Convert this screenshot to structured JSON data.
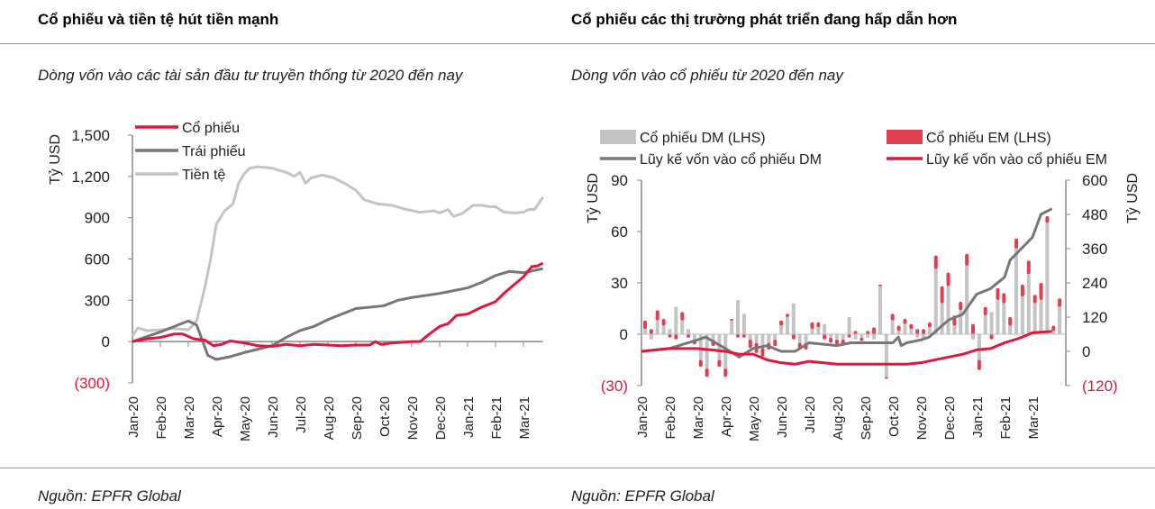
{
  "left": {
    "title": "Cổ phiếu và tiền tệ hút tiền mạnh",
    "subtitle": "Dòng vốn vào các tài sản đầu tư truyền thống từ 2020 đến nay",
    "source": "Nguồn: EPFR Global"
  },
  "right": {
    "title": "Cổ phiếu các thị trường phát triển đang hấp dẫn hơn",
    "subtitle": "Dòng vốn vào cổ phiếu từ 2020 đến nay",
    "source": "Nguồn: EPFR Global"
  },
  "chart_data": [
    {
      "type": "line",
      "ylabel": "Tỷ USD",
      "ylim": [
        -300,
        1500
      ],
      "yticks": [
        1500,
        1200,
        900,
        600,
        300,
        0,
        -300
      ],
      "ytick_labels": [
        "1,500",
        "1,200",
        "900",
        "600",
        "300",
        "0",
        "(300)"
      ],
      "categories": [
        "Jan-20",
        "Feb-20",
        "Mar-20",
        "Apr-20",
        "May-20",
        "Jun-20",
        "Jul-20",
        "Aug-20",
        "Sep-20",
        "Oct-20",
        "Nov-20",
        "Dec-20",
        "Jan-21",
        "Feb-21",
        "Mar-21"
      ],
      "legend": "top-left",
      "series": [
        {
          "name": "Cổ phiếu",
          "color": "#e0183c",
          "points": [
            [
              0,
              0
            ],
            [
              0.5,
              20
            ],
            [
              1,
              30
            ],
            [
              1.5,
              55
            ],
            [
              1.8,
              55
            ],
            [
              2.2,
              20
            ],
            [
              2.6,
              10
            ],
            [
              2.9,
              -30
            ],
            [
              3.2,
              -20
            ],
            [
              3.5,
              5
            ],
            [
              4,
              -10
            ],
            [
              4.5,
              -30
            ],
            [
              5,
              -35
            ],
            [
              5.5,
              -20
            ],
            [
              6,
              -30
            ],
            [
              6.5,
              -20
            ],
            [
              7,
              -25
            ],
            [
              7.5,
              -30
            ],
            [
              8,
              -25
            ],
            [
              8.5,
              -25
            ],
            [
              8.7,
              0
            ],
            [
              8.9,
              -20
            ],
            [
              9.3,
              -10
            ],
            [
              10,
              0
            ],
            [
              10.3,
              0
            ],
            [
              10.6,
              50
            ],
            [
              11,
              110
            ],
            [
              11.3,
              130
            ],
            [
              11.6,
              190
            ],
            [
              12,
              200
            ],
            [
              12.5,
              250
            ],
            [
              13,
              290
            ],
            [
              13.3,
              350
            ],
            [
              13.7,
              420
            ],
            [
              14,
              470
            ],
            [
              14.3,
              545
            ],
            [
              14.5,
              550
            ],
            [
              14.7,
              570
            ]
          ]
        },
        {
          "name": "Trái phiếu",
          "color": "#777777",
          "points": [
            [
              0,
              0
            ],
            [
              1,
              70
            ],
            [
              2,
              150
            ],
            [
              2.3,
              120
            ],
            [
              2.7,
              -100
            ],
            [
              3,
              -130
            ],
            [
              3.5,
              -110
            ],
            [
              4,
              -80
            ],
            [
              5,
              -30
            ],
            [
              5.5,
              30
            ],
            [
              6,
              80
            ],
            [
              6.5,
              110
            ],
            [
              7,
              160
            ],
            [
              7.5,
              200
            ],
            [
              8,
              240
            ],
            [
              8.5,
              250
            ],
            [
              9,
              260
            ],
            [
              9.5,
              300
            ],
            [
              10,
              320
            ],
            [
              11,
              350
            ],
            [
              11.5,
              370
            ],
            [
              12,
              390
            ],
            [
              12.5,
              430
            ],
            [
              13,
              480
            ],
            [
              13.5,
              510
            ],
            [
              14,
              500
            ],
            [
              14.7,
              530
            ]
          ]
        },
        {
          "name": "Tiền tệ",
          "color": "#c4c4c4",
          "points": [
            [
              0,
              40
            ],
            [
              0.2,
              100
            ],
            [
              0.5,
              80
            ],
            [
              1,
              85
            ],
            [
              1.5,
              95
            ],
            [
              2,
              85
            ],
            [
              2.3,
              150
            ],
            [
              2.6,
              400
            ],
            [
              2.8,
              600
            ],
            [
              3,
              850
            ],
            [
              3.3,
              950
            ],
            [
              3.6,
              1000
            ],
            [
              3.8,
              1150
            ],
            [
              4,
              1220
            ],
            [
              4.2,
              1260
            ],
            [
              4.5,
              1270
            ],
            [
              5,
              1260
            ],
            [
              5.5,
              1230
            ],
            [
              5.8,
              1200
            ],
            [
              6,
              1230
            ],
            [
              6.2,
              1150
            ],
            [
              6.4,
              1190
            ],
            [
              6.8,
              1210
            ],
            [
              7.2,
              1190
            ],
            [
              7.6,
              1150
            ],
            [
              8,
              1100
            ],
            [
              8.3,
              1030
            ],
            [
              8.8,
              1000
            ],
            [
              9.3,
              990
            ],
            [
              9.8,
              960
            ],
            [
              10.3,
              940
            ],
            [
              10.8,
              950
            ],
            [
              11,
              935
            ],
            [
              11.3,
              960
            ],
            [
              11.5,
              910
            ],
            [
              11.8,
              930
            ],
            [
              12.2,
              990
            ],
            [
              12.5,
              990
            ],
            [
              12.8,
              980
            ],
            [
              13,
              980
            ],
            [
              13.3,
              940
            ],
            [
              13.7,
              935
            ],
            [
              14,
              940
            ],
            [
              14.2,
              960
            ],
            [
              14.4,
              960
            ],
            [
              14.7,
              1050
            ]
          ]
        }
      ]
    },
    {
      "type": "bar+line",
      "ylabel": "Tỷ USD",
      "y2label": "Tỷ USD",
      "ylim": [
        -30,
        90
      ],
      "y2lim": [
        -120,
        600
      ],
      "yticks": [
        90,
        60,
        30,
        0,
        -30
      ],
      "ytick_labels": [
        "90",
        "60",
        "30",
        "0",
        "(30)"
      ],
      "y2ticks": [
        600,
        480,
        360,
        240,
        120,
        0,
        -120
      ],
      "y2tick_labels": [
        "600",
        "480",
        "360",
        "240",
        "120",
        "0",
        "(120)"
      ],
      "categories": [
        "Jan-20",
        "Feb-20",
        "Mar-20",
        "Apr-20",
        "May-20",
        "Jun-20",
        "Jul-20",
        "Aug-20",
        "Sep-20",
        "Oct-20",
        "Nov-20",
        "Dec-20",
        "Jan-21",
        "Feb-21",
        "Mar-21"
      ],
      "legend": "top",
      "bars": [
        {
          "name": "Cổ phiếu DM (LHS)",
          "color": "#c4c4c4",
          "values": [
            3,
            -3,
            8,
            5,
            3,
            16,
            8,
            3,
            -3,
            -15,
            -20,
            -3,
            -15,
            -20,
            8,
            20,
            12,
            -3,
            -5,
            -8,
            -5,
            -3,
            5,
            10,
            18,
            -5,
            -5,
            3,
            4,
            6,
            -2,
            -3,
            -3,
            10,
            -3,
            -2,
            -2,
            -3,
            28,
            -25,
            8,
            2,
            6,
            3,
            -2,
            -3,
            4,
            38,
            18,
            28,
            5,
            14,
            40,
            -3,
            -15,
            11,
            13,
            20,
            18,
            5,
            50,
            22,
            35,
            18,
            20,
            65,
            2,
            16
          ]
        },
        {
          "name": "Cổ phiếu EM (LHS)",
          "color": "#e04050",
          "values": [
            5,
            3,
            6,
            4,
            -2,
            -3,
            5,
            -2,
            -3,
            -4,
            -5,
            -4,
            -4,
            -5,
            1,
            -2,
            -2,
            -5,
            -6,
            -5,
            -4,
            -4,
            3,
            2,
            -3,
            -3,
            -4,
            4,
            3,
            -3,
            -3,
            -3,
            -3,
            -2,
            2,
            -2,
            2,
            4,
            1,
            -1,
            4,
            3,
            3,
            3,
            3,
            3,
            3,
            8,
            10,
            8,
            6,
            5,
            7,
            6,
            -6,
            5,
            -3,
            7,
            6,
            5,
            6,
            7,
            8,
            5,
            10,
            4,
            3,
            5
          ]
        }
      ],
      "series": [
        {
          "name": "Lũy kế vốn vào cổ phiếu DM",
          "color": "#777777",
          "axis": "right",
          "points": [
            [
              0,
              0
            ],
            [
              1,
              10
            ],
            [
              2,
              40
            ],
            [
              2.3,
              50
            ],
            [
              3,
              10
            ],
            [
              3.5,
              -20
            ],
            [
              4,
              10
            ],
            [
              4.5,
              20
            ],
            [
              5,
              0
            ],
            [
              5.5,
              0
            ],
            [
              6,
              30
            ],
            [
              7,
              20
            ],
            [
              7.5,
              30
            ],
            [
              8,
              30
            ],
            [
              8.5,
              30
            ],
            [
              9,
              30
            ],
            [
              9.2,
              50
            ],
            [
              9.3,
              20
            ],
            [
              9.5,
              30
            ],
            [
              10,
              40
            ],
            [
              10.3,
              50
            ],
            [
              11,
              110
            ],
            [
              11.5,
              130
            ],
            [
              12,
              200
            ],
            [
              12.5,
              220
            ],
            [
              13,
              260
            ],
            [
              13.2,
              320
            ],
            [
              13.6,
              360
            ],
            [
              14,
              400
            ],
            [
              14.3,
              480
            ],
            [
              14.7,
              500
            ]
          ]
        },
        {
          "name": "Lũy kế vốn vào cổ phiếu EM",
          "color": "#e0183c",
          "axis": "right",
          "points": [
            [
              0,
              0
            ],
            [
              1,
              10
            ],
            [
              2,
              10
            ],
            [
              3,
              0
            ],
            [
              3.5,
              -10
            ],
            [
              4,
              -10
            ],
            [
              4.5,
              -30
            ],
            [
              5,
              -40
            ],
            [
              5.5,
              -45
            ],
            [
              6,
              -35
            ],
            [
              6.5,
              -40
            ],
            [
              7,
              -45
            ],
            [
              8,
              -45
            ],
            [
              8.5,
              -45
            ],
            [
              9,
              -45
            ],
            [
              9.5,
              -45
            ],
            [
              10,
              -40
            ],
            [
              11,
              -20
            ],
            [
              11.5,
              -10
            ],
            [
              12,
              5
            ],
            [
              12.5,
              10
            ],
            [
              13,
              30
            ],
            [
              13.5,
              45
            ],
            [
              14,
              65
            ],
            [
              14.7,
              70
            ]
          ]
        }
      ]
    }
  ]
}
